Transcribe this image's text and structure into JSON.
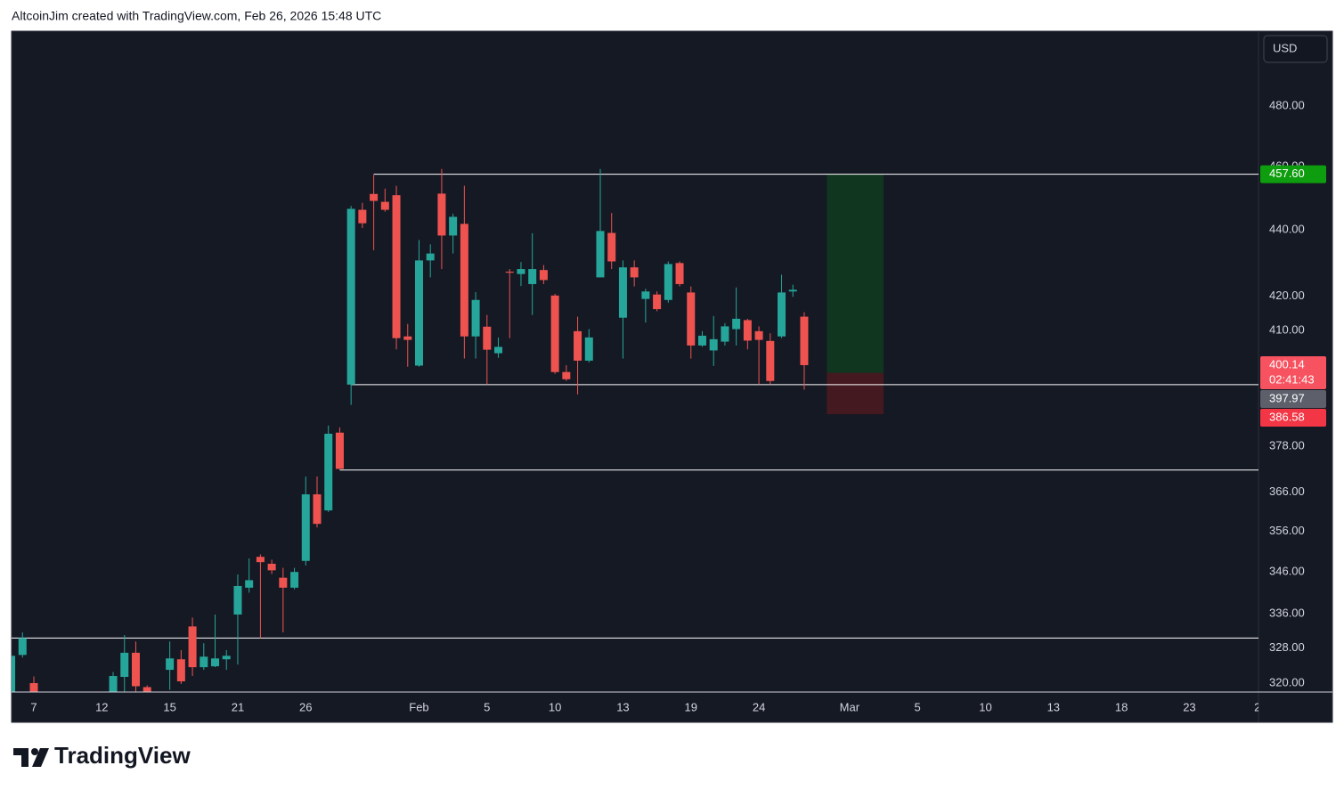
{
  "header": "AltcoinJim created with TradingView.com, Feb 26, 2026 15:48 UTC",
  "brand": "TradingView",
  "chart_data": {
    "type": "candlestick",
    "currency": "USD",
    "log_scale": true,
    "grid": false,
    "up_color": "#26a69a",
    "down_color": "#ef5350",
    "ylim": [
      318,
      506
    ],
    "yticks": [
      {
        "value": 320,
        "label": "320.00"
      },
      {
        "value": 328,
        "label": "328.00"
      },
      {
        "value": 336,
        "label": "336.00"
      },
      {
        "value": 346,
        "label": "346.00"
      },
      {
        "value": 356,
        "label": "356.00"
      },
      {
        "value": 366,
        "label": "366.00"
      },
      {
        "value": 378,
        "label": "378.00"
      },
      {
        "value": 410,
        "label": "410.00"
      },
      {
        "value": 420,
        "label": "420.00"
      },
      {
        "value": 440,
        "label": "440.00"
      },
      {
        "value": 460,
        "label": "460.00"
      },
      {
        "value": 480,
        "label": "480.00"
      }
    ],
    "categories": [
      null,
      null,
      "7",
      null,
      null,
      null,
      null,
      null,
      "12",
      null,
      null,
      null,
      null,
      null,
      "15",
      null,
      null,
      null,
      null,
      null,
      "21",
      null,
      null,
      null,
      null,
      null,
      "26",
      null,
      null,
      null,
      null,
      null,
      null,
      null,
      null,
      null,
      "Feb",
      null,
      null,
      null,
      null,
      null,
      "5",
      null,
      null,
      null,
      null,
      null,
      "10",
      null,
      null,
      null,
      null,
      null,
      "13",
      null,
      null,
      null,
      null,
      null,
      "19",
      null,
      null,
      null,
      null,
      null,
      "24",
      null,
      null,
      null,
      null,
      null,
      null,
      null,
      "Mar",
      null,
      null,
      null,
      null,
      null,
      "5",
      null,
      null,
      null,
      null,
      null,
      "10",
      null,
      null,
      null,
      null,
      null,
      "13",
      null,
      null,
      null,
      null,
      null,
      "18",
      null,
      null,
      null,
      null,
      null,
      "23",
      null,
      null,
      null,
      null,
      null,
      "2"
    ],
    "open": [
      316,
      326.4,
      320,
      null,
      null,
      null,
      null,
      null,
      null,
      317,
      321.4,
      326.9,
      319.1,
      null,
      323,
      325.4,
      333,
      323.6,
      323.8,
      325.4,
      335.8,
      342.2,
      349.7,
      348,
      344.6,
      342.2,
      348.7,
      365.4,
      361.3,
      381.6,
      394.7,
      446.3,
      451.3,
      448.8,
      450.9,
      408.3,
      400,
      430.7,
      451.4,
      438.3,
      441.9,
      408.3,
      411.1,
      403.5,
      427.3,
      426.6,
      423.6,
      427.8,
      420.2,
      398.2,
      409.8,
      401.4,
      425.6,
      439.1,
      413.7,
      428.6,
      419.2,
      420.5,
      418.9,
      429.9,
      421.1,
      405.7,
      404.3,
      406.8,
      410.4,
      413,
      409.8,
      407,
      408.3,
      421.4,
      414,
      null,
      null,
      null,
      null,
      null,
      null,
      null,
      null,
      null,
      null,
      null,
      null,
      null,
      null,
      null,
      null,
      null,
      null,
      null,
      null,
      null,
      null,
      null,
      null,
      null,
      null,
      null,
      null,
      null,
      null,
      null,
      null,
      null,
      null,
      null,
      null,
      null,
      null,
      null,
      null
    ],
    "high": [
      327,
      331.6,
      321.5,
      null,
      null,
      null,
      null,
      null,
      null,
      322.5,
      331,
      329.5,
      319.5,
      null,
      329.5,
      327.5,
      335.1,
      329.1,
      335.8,
      327.5,
      345.4,
      349.3,
      350.3,
      349,
      347,
      347,
      370,
      370,
      383.5,
      383,
      447.5,
      448.5,
      457.4,
      453,
      453.9,
      411.9,
      436.9,
      435.6,
      459.3,
      445.1,
      453.9,
      421.2,
      414.5,
      408,
      428.1,
      430.2,
      439,
      429.3,
      420.7,
      400.1,
      414,
      410.4,
      459.3,
      445.3,
      430.7,
      430.7,
      422.2,
      421.4,
      430.4,
      430.4,
      422.9,
      409.8,
      414.2,
      412.1,
      422.6,
      413.4,
      411.2,
      409.2,
      426.4,
      423.4,
      415.3,
      null,
      null,
      null,
      null,
      null,
      null,
      null,
      null,
      null,
      null,
      null,
      null,
      null,
      null,
      null,
      null,
      null,
      null,
      null,
      null,
      null,
      null,
      null,
      null,
      null,
      null,
      null,
      null,
      null,
      null,
      null,
      null,
      null,
      null,
      null,
      null,
      null,
      null,
      null,
      null
    ],
    "low": [
      314,
      325.8,
      316,
      null,
      null,
      null,
      null,
      null,
      null,
      316,
      317,
      317,
      316,
      null,
      318.5,
      319.8,
      321.6,
      323,
      323.6,
      323,
      324.2,
      341,
      330.3,
      345.5,
      331.6,
      341.8,
      347.6,
      357,
      360.9,
      371.9,
      389.1,
      440.6,
      433.8,
      445.7,
      404.6,
      399.7,
      399.7,
      425.6,
      428.1,
      432.8,
      402,
      402,
      394.7,
      402.2,
      407.8,
      423,
      414.5,
      423.6,
      397.7,
      395.7,
      392,
      400.9,
      425.6,
      428.1,
      402,
      422.9,
      412.3,
      415.6,
      418.1,
      422.9,
      402,
      405.3,
      399.9,
      405.7,
      405.7,
      404.6,
      394.7,
      394.7,
      407.8,
      419.8,
      393.3,
      null,
      null,
      null,
      null,
      null,
      null,
      null,
      null,
      null,
      null,
      null,
      null,
      null,
      null,
      null,
      null,
      null,
      null,
      null,
      null,
      null,
      null,
      null,
      null,
      null,
      null,
      null,
      null,
      null,
      null,
      null,
      null,
      null,
      null,
      null,
      null,
      null,
      null,
      null,
      null
    ],
    "close": [
      326.2,
      330.3,
      317,
      null,
      null,
      null,
      null,
      null,
      null,
      321.6,
      326.9,
      319.3,
      317.5,
      null,
      325.6,
      320.4,
      323.6,
      326,
      325.6,
      326.2,
      342.6,
      344,
      348.4,
      346.4,
      342.2,
      346,
      365.4,
      357.9,
      381.3,
      372,
      446.6,
      442.1,
      449.1,
      446.3,
      407.8,
      407.3,
      430.7,
      432.8,
      438.3,
      444.1,
      408.3,
      418.9,
      404.5,
      405.3,
      427,
      428.1,
      428.1,
      424.8,
      398.2,
      396.2,
      401.4,
      408,
      439.7,
      430.4,
      428.6,
      425.6,
      421.4,
      416.2,
      429.6,
      423.6,
      405.7,
      408.5,
      407.5,
      411.2,
      413.4,
      407.1,
      407.3,
      395.7,
      421.1,
      421.9,
      400.14,
      null,
      null,
      null,
      null,
      null,
      null,
      null,
      null,
      null,
      null,
      null,
      null,
      null,
      null,
      null,
      null,
      null,
      null,
      null,
      null,
      null,
      null,
      null,
      null,
      null,
      null,
      null,
      null,
      null,
      null,
      null,
      null,
      null,
      null,
      null,
      null,
      null,
      null,
      null,
      null
    ],
    "hlines": [
      {
        "value": 457.6,
        "start": 32
      },
      {
        "value": 394.7,
        "start": 30
      },
      {
        "value": 371.7,
        "start": 29
      },
      {
        "value": 330.3,
        "start": 0
      }
    ],
    "position": {
      "start": 72,
      "end": 77,
      "target": {
        "value": 457.6,
        "label": "457.60",
        "color": "#0e9d0e"
      },
      "entry": {
        "value": 397.97,
        "label": "397.97",
        "color": "#5d606b"
      },
      "stop": {
        "value": 386.58,
        "label": "386.58",
        "color": "#f23645"
      }
    },
    "last_price": {
      "value": 400.14,
      "label": "400.14",
      "color": "#f7525f"
    },
    "countdown": "02:41:43"
  }
}
